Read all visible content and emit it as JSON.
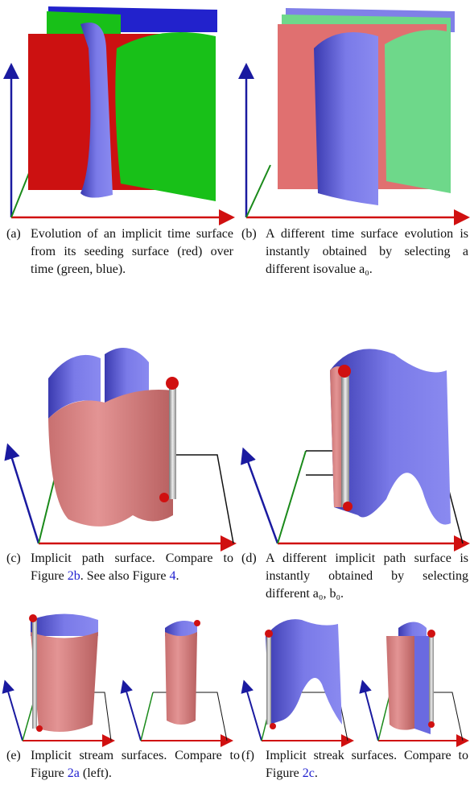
{
  "captions": [
    {
      "label": "(a)",
      "parts": [
        {
          "text": "Evolution of an implicit time surface from its seeding surface (red) over time (green, blue)."
        }
      ]
    },
    {
      "label": "(b)",
      "parts": [
        {
          "text": "A different time surface evolution is instantly obtained by selecting a different isovalue a₀."
        }
      ]
    },
    {
      "label": "(c)",
      "parts": [
        {
          "text": "Implicit path surface. Compare to Figure "
        },
        {
          "text": "2b",
          "ref": true
        },
        {
          "text": ". See also Figure "
        },
        {
          "text": "4",
          "ref": true
        },
        {
          "text": "."
        }
      ]
    },
    {
      "label": "(d)",
      "parts": [
        {
          "text": "A different implicit path surface is instantly obtained by selecting different a₀, b₀."
        }
      ]
    },
    {
      "label": "(e)",
      "parts": [
        {
          "text": "Implicit stream surfaces. Compare to Figure "
        },
        {
          "text": "2a",
          "ref": true
        },
        {
          "text": " (left)."
        }
      ]
    },
    {
      "label": "(f)",
      "parts": [
        {
          "text": "Implicit streak surfaces. Compare to Figure "
        },
        {
          "text": "2c",
          "ref": true
        },
        {
          "text": "."
        }
      ]
    }
  ]
}
